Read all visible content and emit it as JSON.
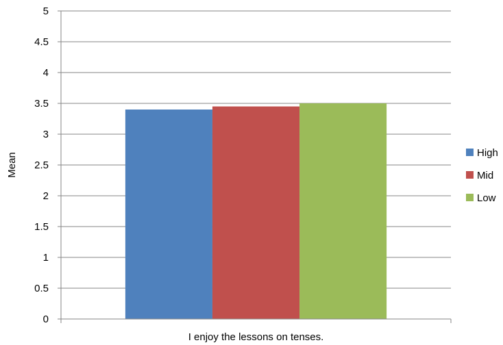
{
  "chart_data": {
    "type": "bar",
    "categories": [
      "I enjoy the lessons on tenses."
    ],
    "series": [
      {
        "name": "High",
        "values": [
          3.4
        ],
        "color": "#4F81BD"
      },
      {
        "name": "Mid",
        "values": [
          3.45
        ],
        "color": "#C0504D"
      },
      {
        "name": "Low",
        "values": [
          3.5
        ],
        "color": "#9BBB59"
      }
    ],
    "xlabel": "",
    "ylabel": "Mean",
    "ylim": [
      0,
      5
    ],
    "yticks": [
      "0",
      "0.5",
      "1",
      "1.5",
      "2",
      "2.5",
      "3",
      "3.5",
      "4",
      "4.5",
      "5"
    ],
    "grid": true,
    "legend_position": "right"
  }
}
